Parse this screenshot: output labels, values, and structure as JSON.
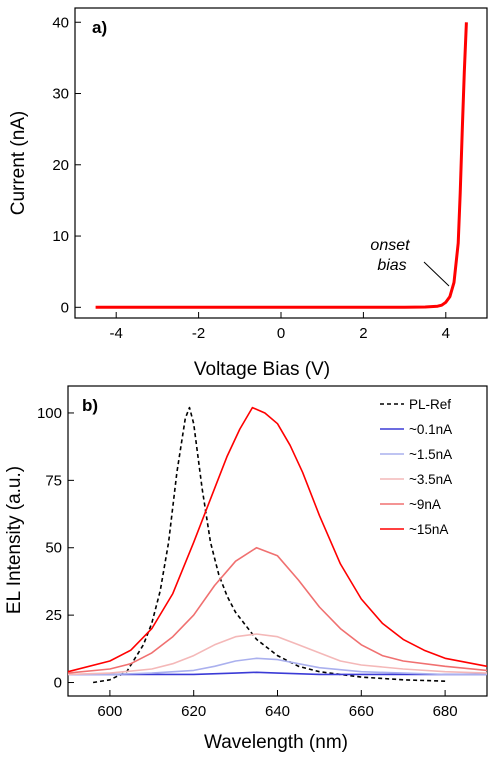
{
  "chart_data": [
    {
      "panel_label": "a)",
      "type": "line",
      "xlabel": "Voltage Bias (V)",
      "ylabel": "Current (nA)",
      "xlim": [
        -5,
        5
      ],
      "ylim": [
        -1.5,
        42
      ],
      "xticks": [
        -4,
        -2,
        0,
        2,
        4
      ],
      "xtick_labels": [
        "-4",
        "-2",
        "0",
        "2",
        "4"
      ],
      "yticks": [
        0,
        10,
        20,
        30,
        40
      ],
      "ytick_labels": [
        "0",
        "10",
        "20",
        "30",
        "40"
      ],
      "grid": false,
      "series": [
        {
          "color": "#ff0000",
          "x": [
            -4.5,
            -3,
            -2,
            -1,
            0,
            1,
            2,
            3,
            3.5,
            3.8,
            3.9,
            4.0,
            4.1,
            4.2,
            4.3,
            4.35,
            4.4,
            4.45,
            4.5
          ],
          "y": [
            0,
            0,
            0,
            0,
            0,
            0,
            0,
            0.02,
            0.05,
            0.15,
            0.3,
            0.7,
            1.5,
            3.5,
            9,
            16,
            25,
            33,
            40
          ]
        }
      ],
      "annotation": {
        "line1": "onset",
        "line2": "bias",
        "x": 4.0,
        "y": 1.0
      }
    },
    {
      "panel_label": "b)",
      "type": "line",
      "xlabel": "Wavelength (nm)",
      "ylabel": "EL Intensity (a.u.)",
      "xlim": [
        590,
        690
      ],
      "ylim": [
        -5,
        110
      ],
      "xticks": [
        600,
        620,
        640,
        660,
        680
      ],
      "xtick_labels": [
        "600",
        "620",
        "640",
        "660",
        "680"
      ],
      "yticks": [
        0,
        25,
        50,
        75,
        100
      ],
      "ytick_labels": [
        "0",
        "25",
        "50",
        "75",
        "100"
      ],
      "grid": false,
      "legend_position": "top-right",
      "legend": [
        "PL-Ref",
        "~0.1nA",
        "~1.5nA",
        "~3.5nA",
        "~9nA",
        "~15nA"
      ],
      "series": [
        {
          "name": "PL-Ref",
          "color": "#000000",
          "dashed": true,
          "x": [
            596,
            600,
            604,
            608,
            610,
            612,
            614,
            616,
            618,
            619,
            620,
            622,
            624,
            626,
            628,
            630,
            635,
            640,
            645,
            650,
            660,
            670,
            680
          ],
          "y": [
            0,
            1,
            4,
            14,
            22,
            34,
            52,
            78,
            98,
            102,
            96,
            72,
            52,
            40,
            32,
            26,
            16,
            10,
            6,
            4,
            2,
            1,
            0.5
          ]
        },
        {
          "name": "~0.1nA",
          "color": "#3b3bd6",
          "x": [
            590,
            600,
            610,
            620,
            630,
            635,
            640,
            650,
            660,
            670,
            680,
            690
          ],
          "y": [
            3,
            3,
            3,
            3,
            3.5,
            3.8,
            3.5,
            3,
            3,
            3,
            3,
            3
          ]
        },
        {
          "name": "~1.5nA",
          "color": "#aab0ee",
          "x": [
            590,
            600,
            610,
            620,
            625,
            630,
            635,
            640,
            645,
            650,
            660,
            670,
            680,
            690
          ],
          "y": [
            3,
            3,
            3.5,
            4.5,
            6,
            8,
            9,
            8.5,
            7,
            5.5,
            4,
            3.5,
            3,
            3
          ]
        },
        {
          "name": "~3.5nA",
          "color": "#f4b8b8",
          "x": [
            590,
            600,
            610,
            615,
            620,
            625,
            630,
            635,
            640,
            645,
            650,
            655,
            660,
            670,
            680,
            690
          ],
          "y": [
            3,
            3.5,
            5,
            7,
            10,
            14,
            17,
            18,
            17,
            14,
            11,
            8,
            6.5,
            5,
            4,
            3.5
          ]
        },
        {
          "name": "~9nA",
          "color": "#f07070",
          "x": [
            590,
            600,
            605,
            610,
            615,
            620,
            625,
            630,
            635,
            640,
            645,
            650,
            655,
            660,
            665,
            670,
            680,
            690
          ],
          "y": [
            3.5,
            5,
            7,
            11,
            17,
            25,
            36,
            45,
            50,
            47,
            38,
            28,
            20,
            14,
            10,
            8,
            6,
            4.5
          ]
        },
        {
          "name": "~15nA",
          "color": "#ff0000",
          "x": [
            590,
            600,
            605,
            610,
            615,
            620,
            625,
            628,
            631,
            634,
            637,
            640,
            643,
            646,
            650,
            655,
            660,
            665,
            670,
            675,
            680,
            690
          ],
          "y": [
            4,
            8,
            12,
            20,
            33,
            52,
            72,
            84,
            94,
            102,
            100,
            96,
            88,
            78,
            62,
            44,
            31,
            22,
            16,
            12,
            9,
            6
          ]
        }
      ]
    }
  ]
}
